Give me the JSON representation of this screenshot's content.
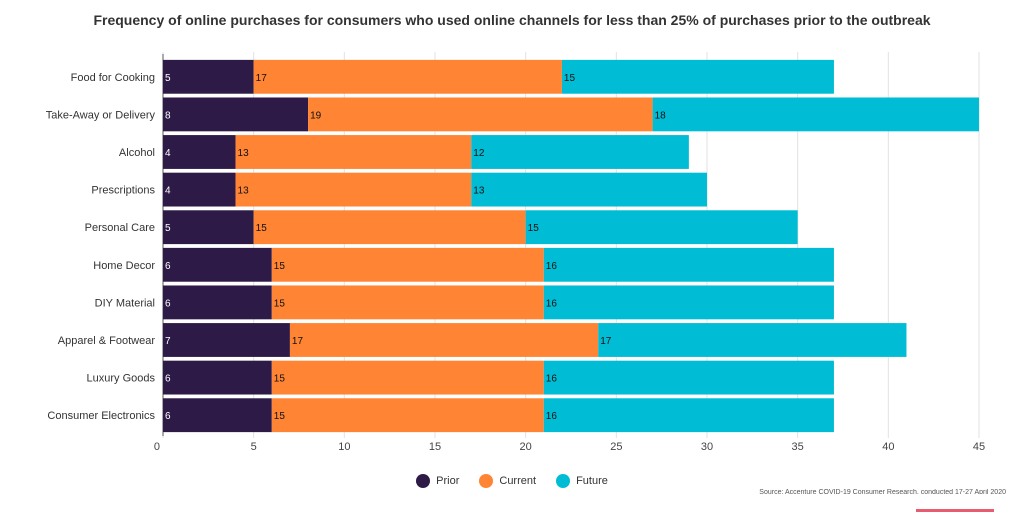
{
  "colors": {
    "prior": "#2e1a47",
    "current": "#ff8433",
    "future": "#00bcd4",
    "grid": "#e2e2e2"
  },
  "chart_data": {
    "type": "bar",
    "orientation": "horizontal",
    "stacked": true,
    "title": "Frequency of online purchases for consumers who used online channels for less than 25% of purchases prior to the outbreak",
    "categories": [
      "Food for Cooking",
      "Take-Away or Delivery",
      "Alcohol",
      "Prescriptions",
      "Personal Care",
      "Home Decor",
      "DIY Material",
      "Apparel & Footwear",
      "Luxury Goods",
      "Consumer Electronics"
    ],
    "series": [
      {
        "name": "Prior",
        "values": [
          5,
          8,
          4,
          4,
          5,
          6,
          6,
          7,
          6,
          6
        ]
      },
      {
        "name": "Current",
        "values": [
          17,
          19,
          13,
          13,
          15,
          15,
          15,
          17,
          15,
          15
        ]
      },
      {
        "name": "Future",
        "values": [
          15,
          18,
          12,
          13,
          15,
          16,
          16,
          17,
          16,
          16
        ]
      }
    ],
    "xlim": [
      0,
      45
    ],
    "xticks": [
      0,
      5,
      10,
      15,
      20,
      25,
      30,
      35,
      40,
      45
    ],
    "grid": true,
    "legend_position": "bottom"
  },
  "source_text": "Source: Accenture COVID-19 Consumer Research, conducted 17-27 April 2020"
}
